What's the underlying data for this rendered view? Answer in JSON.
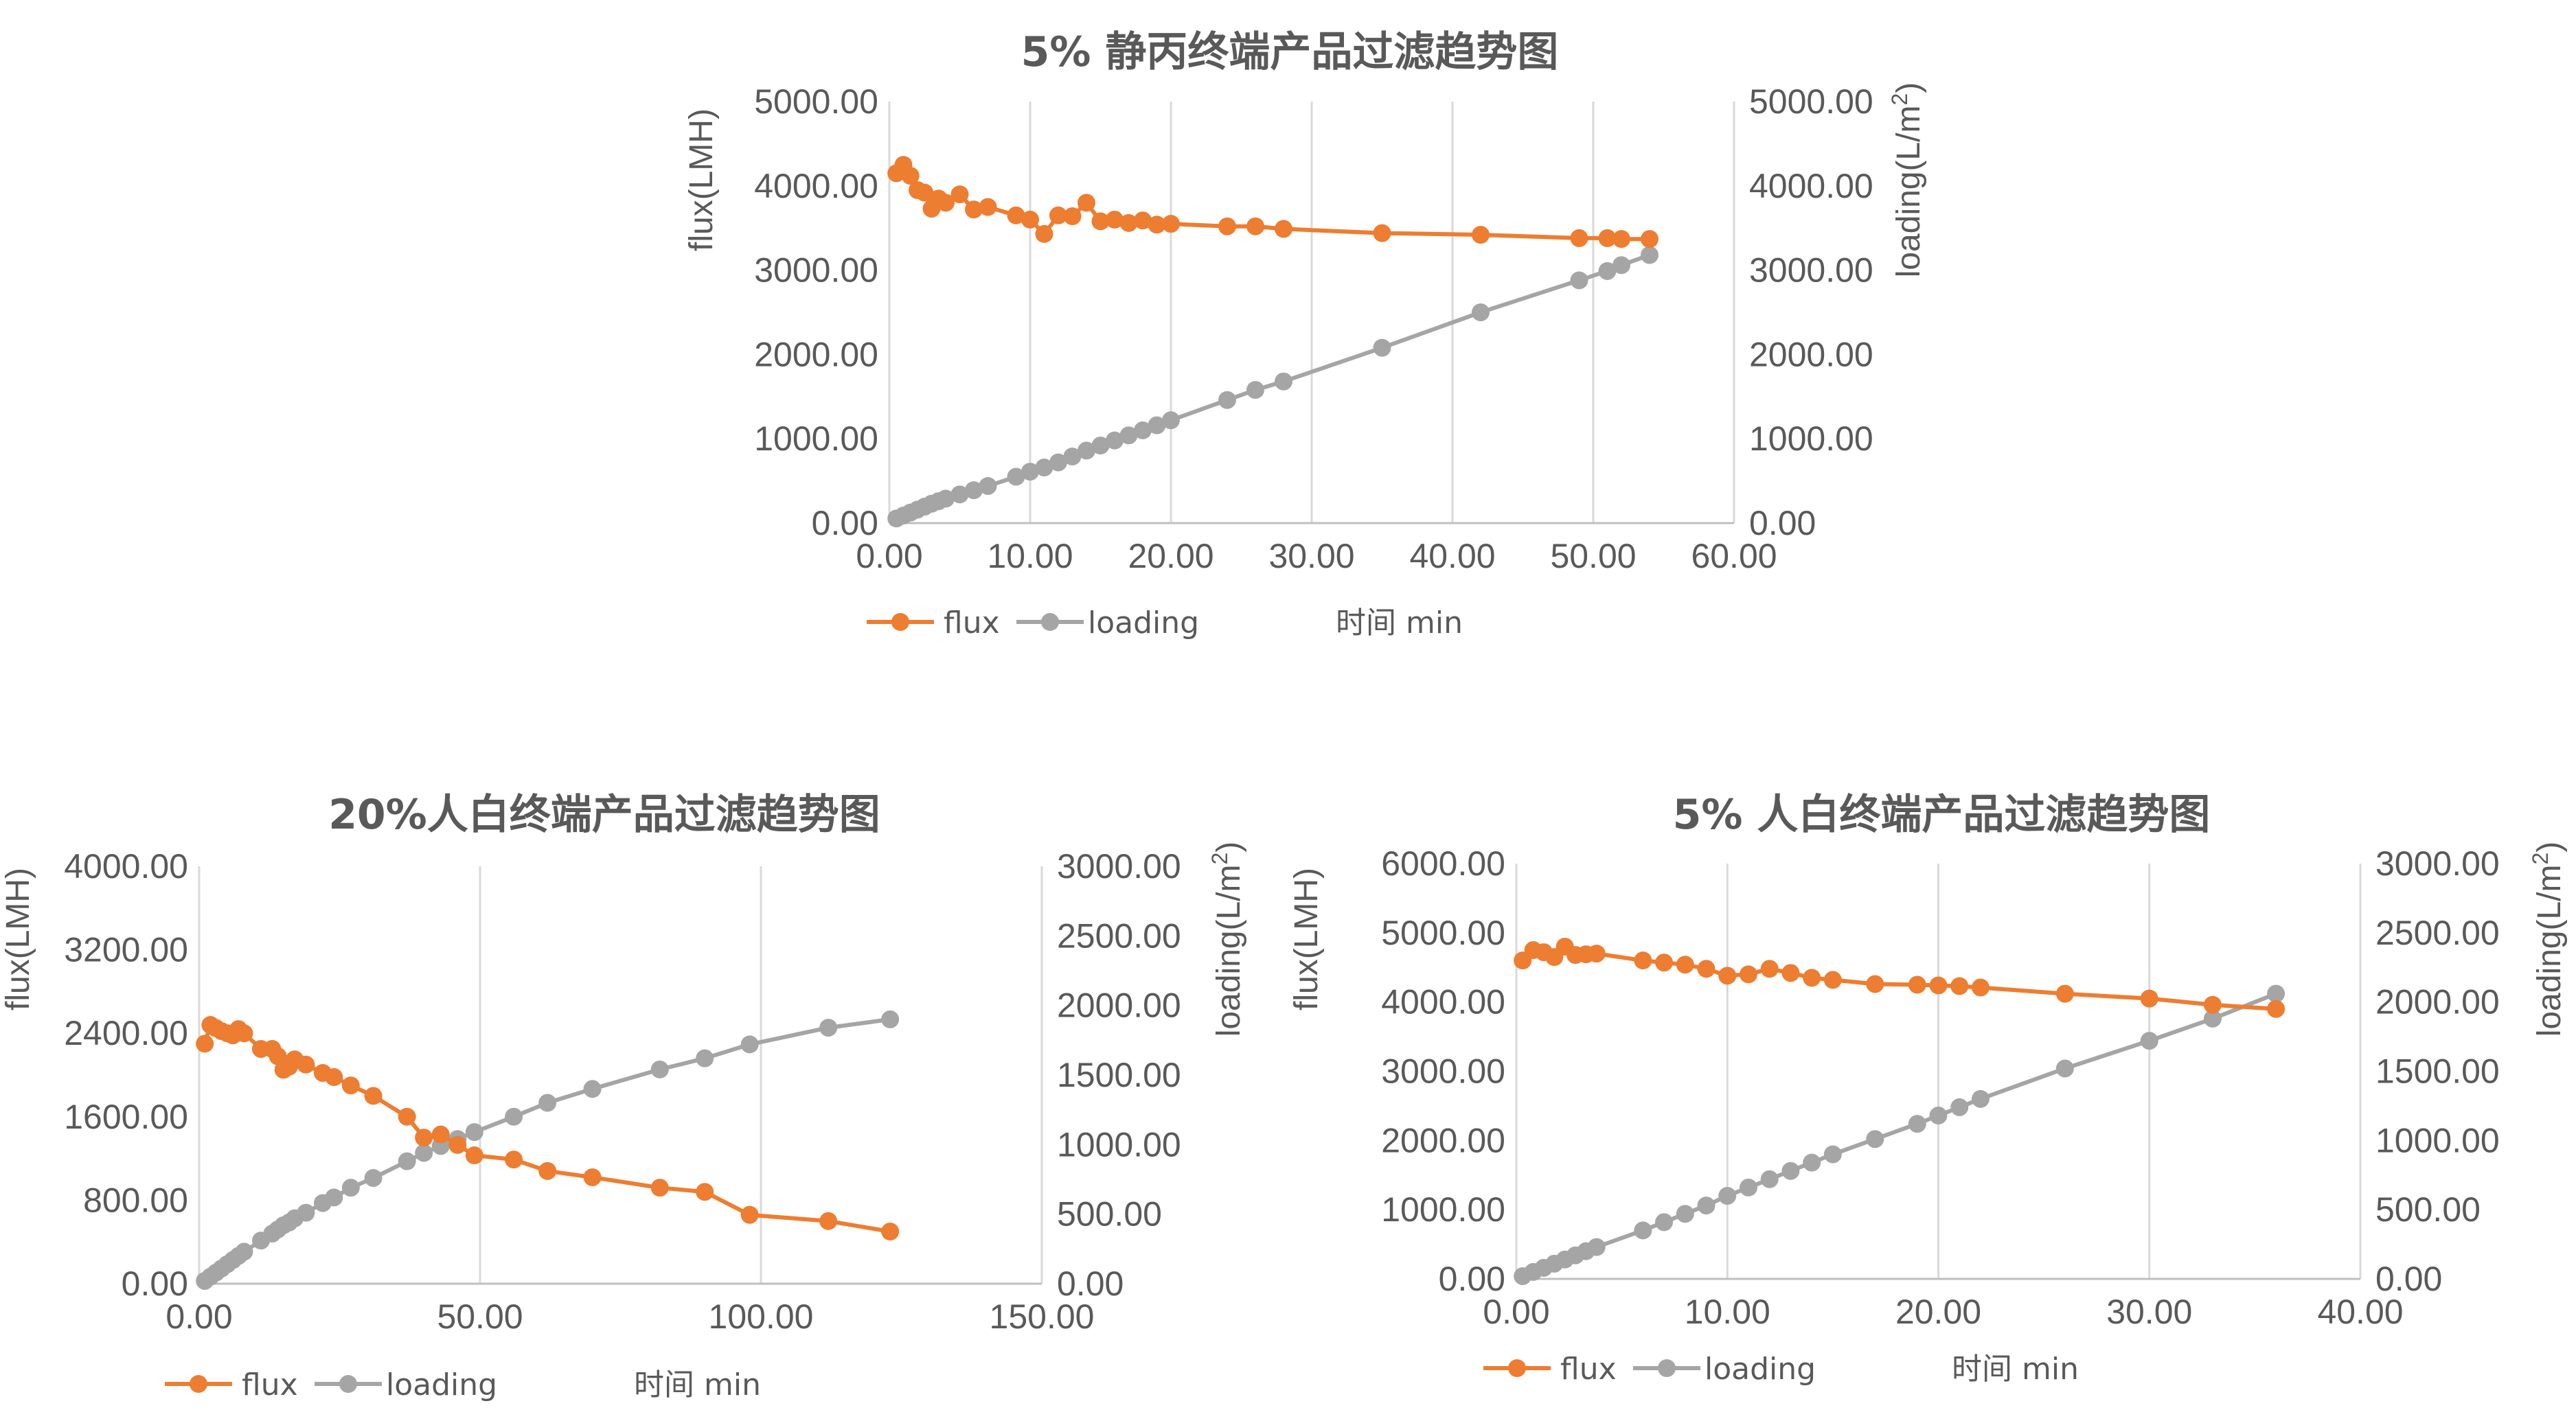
{
  "chart_data": [
    {
      "type": "line",
      "title": "5% 静丙终端产品过滤趋势图",
      "xlabel": "时间 min",
      "ylabel": "flux(LMH)",
      "y2label": "loading(L/m2)",
      "xlim": [
        0,
        60
      ],
      "ylim": [
        0,
        5000
      ],
      "y2lim": [
        0,
        5000
      ],
      "xticks": [
        "0.00",
        "10.00",
        "20.00",
        "30.00",
        "40.00",
        "50.00",
        "60.00"
      ],
      "yticks": [
        "0.00",
        "1000.00",
        "2000.00",
        "3000.00",
        "4000.00",
        "5000.00"
      ],
      "y2ticks": [
        "0.00",
        "1000.00",
        "2000.00",
        "3000.00",
        "4000.00",
        "5000.00"
      ],
      "grid": "vertical",
      "legend": "bottom-left",
      "series": [
        {
          "name": "flux",
          "axis": "left",
          "color": "#ED7D31",
          "x": [
            0.5,
            1,
            1.5,
            2,
            2.5,
            3,
            3.5,
            4,
            5,
            6,
            7,
            9,
            10,
            11,
            12,
            13,
            14,
            15,
            16,
            17,
            18,
            19,
            20,
            24,
            26,
            28,
            35,
            42,
            49,
            51,
            52,
            54
          ],
          "y": [
            4150,
            4250,
            4120,
            3950,
            3920,
            3730,
            3850,
            3800,
            3900,
            3720,
            3750,
            3650,
            3600,
            3430,
            3650,
            3640,
            3800,
            3580,
            3600,
            3560,
            3590,
            3540,
            3550,
            3520,
            3520,
            3490,
            3440,
            3420,
            3380,
            3380,
            3370,
            3370
          ]
        },
        {
          "name": "loading",
          "axis": "right",
          "color": "#A5A5A5",
          "x": [
            0.5,
            1,
            1.5,
            2,
            2.5,
            3,
            3.5,
            4,
            5,
            6,
            7,
            9,
            10,
            11,
            12,
            13,
            14,
            15,
            16,
            17,
            18,
            19,
            20,
            24,
            26,
            28,
            35,
            42,
            49,
            51,
            52,
            54
          ],
          "y": [
            55,
            90,
            125,
            160,
            195,
            230,
            260,
            290,
            340,
            390,
            440,
            550,
            610,
            660,
            720,
            790,
            860,
            920,
            980,
            1040,
            1100,
            1160,
            1220,
            1460,
            1580,
            1680,
            2080,
            2500,
            2880,
            2990,
            3060,
            3180
          ]
        }
      ]
    },
    {
      "type": "line",
      "title": "20%人白终端产品过滤趋势图",
      "xlabel": "时间 min",
      "ylabel": "flux(LMH)",
      "y2label": "loading(L/m2)",
      "xlim": [
        0,
        150
      ],
      "ylim": [
        0,
        4000
      ],
      "y2lim": [
        0,
        3000
      ],
      "xticks": [
        "0.00",
        "50.00",
        "100.00",
        "150.00"
      ],
      "yticks": [
        "0.00",
        "800.00",
        "1600.00",
        "2400.00",
        "3200.00",
        "4000.00"
      ],
      "y2ticks": [
        "0.00",
        "500.00",
        "1000.00",
        "1500.00",
        "2000.00",
        "2500.00",
        "3000.00"
      ],
      "grid": "vertical",
      "legend": "bottom-left",
      "series": [
        {
          "name": "flux",
          "axis": "left",
          "color": "#ED7D31",
          "x": [
            1,
            2,
            3,
            4,
            5,
            6,
            7,
            8,
            11,
            13,
            14,
            15,
            16,
            17,
            19,
            22,
            24,
            27,
            31,
            37,
            40,
            43,
            46,
            49,
            56,
            62,
            70,
            82,
            90,
            98,
            112,
            123
          ],
          "y": [
            2300,
            2480,
            2450,
            2420,
            2400,
            2380,
            2440,
            2400,
            2250,
            2250,
            2180,
            2050,
            2080,
            2150,
            2100,
            2020,
            1980,
            1900,
            1800,
            1600,
            1400,
            1430,
            1330,
            1230,
            1190,
            1080,
            1020,
            920,
            880,
            660,
            600,
            500
          ]
        },
        {
          "name": "loading",
          "axis": "right",
          "color": "#A5A5A5",
          "x": [
            1,
            2,
            3,
            4,
            5,
            6,
            7,
            8,
            11,
            13,
            14,
            15,
            16,
            17,
            19,
            22,
            24,
            27,
            31,
            37,
            40,
            43,
            46,
            49,
            56,
            62,
            70,
            82,
            90,
            98,
            112,
            123
          ],
          "y": [
            20,
            50,
            80,
            110,
            140,
            170,
            200,
            230,
            310,
            360,
            390,
            420,
            440,
            470,
            510,
            580,
            620,
            690,
            760,
            880,
            940,
            990,
            1040,
            1090,
            1200,
            1300,
            1400,
            1540,
            1620,
            1720,
            1840,
            1900
          ]
        }
      ]
    },
    {
      "type": "line",
      "title": "5% 人白终端产品过滤趋势图",
      "xlabel": "时间 min",
      "ylabel": "flux(LMH)",
      "y2label": "loading(L/m2)",
      "xlim": [
        0,
        40
      ],
      "ylim": [
        0,
        6000
      ],
      "y2lim": [
        0,
        3000
      ],
      "xticks": [
        "0.00",
        "10.00",
        "20.00",
        "30.00",
        "40.00"
      ],
      "yticks": [
        "0.00",
        "1000.00",
        "2000.00",
        "3000.00",
        "4000.00",
        "5000.00",
        "6000.00"
      ],
      "y2ticks": [
        "0.00",
        "500.00",
        "1000.00",
        "1500.00",
        "2000.00",
        "2500.00",
        "3000.00"
      ],
      "grid": "vertical",
      "legend": "bottom-left",
      "series": [
        {
          "name": "flux",
          "axis": "left",
          "color": "#ED7D31",
          "x": [
            0.3,
            0.8,
            1.3,
            1.8,
            2.3,
            2.8,
            3.3,
            3.8,
            6,
            7,
            8,
            9,
            10,
            11,
            12,
            13,
            14,
            15,
            17,
            19,
            20,
            21,
            22,
            26,
            30,
            33,
            36
          ],
          "y": [
            4600,
            4750,
            4720,
            4650,
            4800,
            4680,
            4690,
            4700,
            4600,
            4570,
            4540,
            4480,
            4380,
            4400,
            4480,
            4420,
            4350,
            4320,
            4260,
            4250,
            4240,
            4230,
            4210,
            4120,
            4050,
            3960,
            3900
          ]
        },
        {
          "name": "loading",
          "axis": "right",
          "color": "#A5A5A5",
          "x": [
            0.3,
            0.8,
            1.3,
            1.8,
            2.3,
            2.8,
            3.3,
            3.8,
            6,
            7,
            8,
            9,
            10,
            11,
            12,
            13,
            14,
            15,
            17,
            19,
            20,
            21,
            22,
            26,
            30,
            33,
            36
          ],
          "y": [
            20,
            50,
            80,
            110,
            140,
            170,
            200,
            230,
            350,
            410,
            470,
            530,
            600,
            660,
            720,
            780,
            840,
            900,
            1010,
            1120,
            1180,
            1240,
            1300,
            1520,
            1720,
            1880,
            2060
          ]
        }
      ]
    }
  ]
}
